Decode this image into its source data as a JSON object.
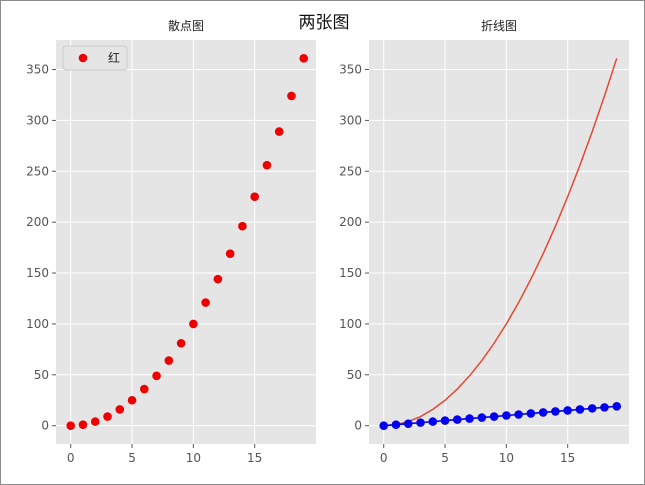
{
  "figure": {
    "suptitle": "两张图",
    "style": "ggplot",
    "colors": {
      "axes_bg": "#e5e5e5",
      "grid": "#ffffff",
      "tick_text": "#555555",
      "red": "#ee0000",
      "line_red": "#e24a33",
      "blue": "#0000ee"
    }
  },
  "chart_data": [
    {
      "type": "scatter",
      "title": "散点图",
      "xlabel": "",
      "ylabel": "",
      "xlim": [
        -1.2,
        20.0
      ],
      "ylim": [
        -18,
        379
      ],
      "xticks": [
        0,
        5,
        10,
        15
      ],
      "yticks": [
        0,
        50,
        100,
        150,
        200,
        250,
        300,
        350
      ],
      "grid": true,
      "legend": {
        "placement": "top-left",
        "entries": [
          "红"
        ]
      },
      "series": [
        {
          "name": "红",
          "color": "#ee0000",
          "marker": "circle",
          "x": [
            0,
            1,
            2,
            3,
            4,
            5,
            6,
            7,
            8,
            9,
            10,
            11,
            12,
            13,
            14,
            15,
            16,
            17,
            18,
            19
          ],
          "y": [
            0,
            1,
            4,
            9,
            16,
            25,
            36,
            49,
            64,
            81,
            100,
            121,
            144,
            169,
            196,
            225,
            256,
            289,
            324,
            361
          ]
        }
      ]
    },
    {
      "type": "line",
      "title": "折线图",
      "xlabel": "",
      "ylabel": "",
      "xlim": [
        -1.2,
        20.0
      ],
      "ylim": [
        -18,
        379
      ],
      "xticks": [
        0,
        5,
        10,
        15
      ],
      "yticks": [
        0,
        50,
        100,
        150,
        200,
        250,
        300,
        350
      ],
      "grid": true,
      "series": [
        {
          "color": "#e24a33",
          "marker": "none",
          "x": [
            0,
            1,
            2,
            3,
            4,
            5,
            6,
            7,
            8,
            9,
            10,
            11,
            12,
            13,
            14,
            15,
            16,
            17,
            18,
            19
          ],
          "y": [
            0,
            1,
            4,
            9,
            16,
            25,
            36,
            49,
            64,
            81,
            100,
            121,
            144,
            169,
            196,
            225,
            256,
            289,
            324,
            361
          ]
        },
        {
          "color": "#0000ee",
          "marker": "circle",
          "x": [
            0,
            1,
            2,
            3,
            4,
            5,
            6,
            7,
            8,
            9,
            10,
            11,
            12,
            13,
            14,
            15,
            16,
            17,
            18,
            19
          ],
          "y": [
            0,
            1,
            2,
            3,
            4,
            5,
            6,
            7,
            8,
            9,
            10,
            11,
            12,
            13,
            14,
            15,
            16,
            17,
            18,
            19
          ]
        }
      ]
    }
  ]
}
